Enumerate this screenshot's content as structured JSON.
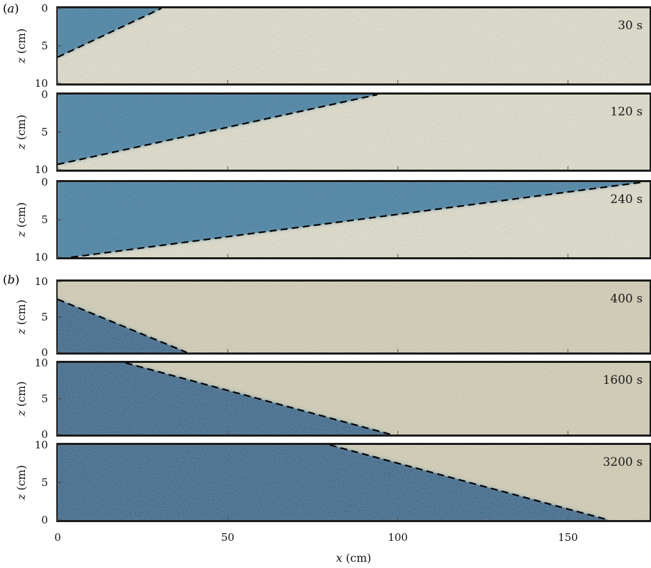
{
  "figure": {
    "panels": [
      {
        "letter": "a",
        "x_axis": {
          "range": [
            0,
            174
          ],
          "ticks": [
            0,
            50,
            100,
            150
          ]
        },
        "y_axis": {
          "label_var": "z",
          "label_unit": "(cm)",
          "range": [
            0,
            10
          ],
          "ticks": [
            0,
            5,
            10
          ],
          "inverted": true
        },
        "frames": [
          {
            "time_label": "30 s",
            "front_line": [
              [
                0,
                6.5
              ],
              [
                30.5,
                0
              ]
            ],
            "dyed_region": "left-upper"
          },
          {
            "time_label": "120 s",
            "front_line": [
              [
                0,
                9.3
              ],
              [
                94,
                0
              ]
            ],
            "dyed_region": "left-upper"
          },
          {
            "time_label": "240 s",
            "front_line": [
              [
                4,
                10
              ],
              [
                172,
                0
              ]
            ],
            "dyed_region": "left-upper"
          }
        ]
      },
      {
        "letter": "b",
        "x_axis": {
          "range": [
            0,
            174
          ],
          "ticks": [
            0,
            50,
            100,
            150
          ]
        },
        "y_axis": {
          "label_var": "z",
          "label_unit": "(cm)",
          "range": [
            0,
            10
          ],
          "ticks": [
            0,
            5,
            10
          ],
          "inverted": false
        },
        "frames": [
          {
            "time_label": "400 s",
            "front_line": [
              [
                0,
                7.5
              ],
              [
                38,
                0
              ]
            ],
            "dyed_region": "left-lower"
          },
          {
            "time_label": "1600 s",
            "front_line": [
              [
                20,
                10
              ],
              [
                98,
                0
              ]
            ],
            "dyed_region": "left-lower"
          },
          {
            "time_label": "3200 s",
            "front_line": [
              [
                80,
                10
              ],
              [
                162,
                0
              ]
            ],
            "dyed_region": "left-lower"
          }
        ]
      }
    ],
    "x_axis_title": {
      "var": "x",
      "unit": "(cm)"
    },
    "colors": {
      "dye": "#2f7fa8",
      "dye_dark": "#1e5f8c",
      "sand": "#d9d4bc",
      "sand_light": "#e6e3d2",
      "frame": "#1c1c1c",
      "dash": "#000000"
    }
  }
}
